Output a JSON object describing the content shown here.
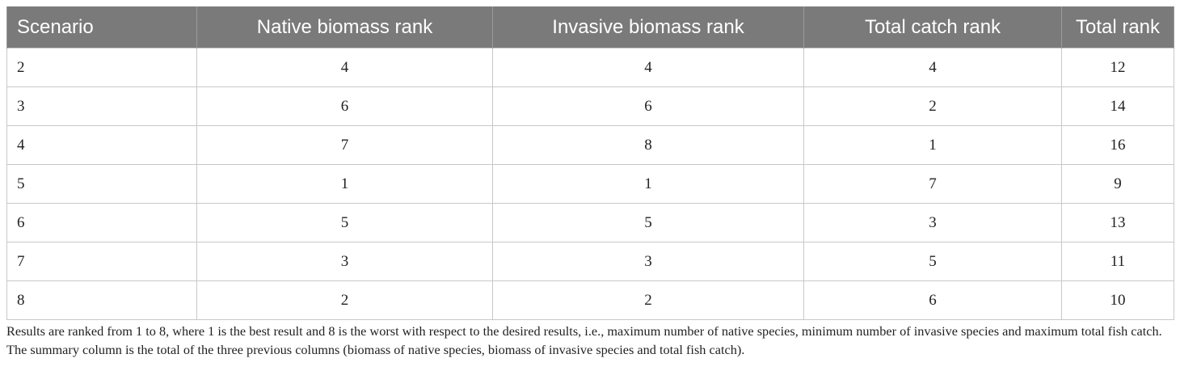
{
  "table": {
    "headers": [
      "Scenario",
      "Native biomass rank",
      "Invasive biomass rank",
      "Total catch rank",
      "Total rank"
    ],
    "rows": [
      [
        "2",
        "4",
        "4",
        "4",
        "12"
      ],
      [
        "3",
        "6",
        "6",
        "2",
        "14"
      ],
      [
        "4",
        "7",
        "8",
        "1",
        "16"
      ],
      [
        "5",
        "1",
        "1",
        "7",
        "9"
      ],
      [
        "6",
        "5",
        "5",
        "3",
        "13"
      ],
      [
        "7",
        "3",
        "3",
        "5",
        "11"
      ],
      [
        "8",
        "2",
        "2",
        "6",
        "10"
      ]
    ]
  },
  "footnote": "Results are ranked from 1 to 8, where 1 is the best result and 8 is the worst with respect to the desired results, i.e., maximum number of native species, minimum number of invasive species and maximum total fish catch. The summary column is the total of the three previous columns (biomass of native species, biomass of invasive species and total fish catch).",
  "colors": {
    "header_bg": "#7a7a7a",
    "header_text": "#ffffff",
    "grid": "#c8c8c8"
  }
}
